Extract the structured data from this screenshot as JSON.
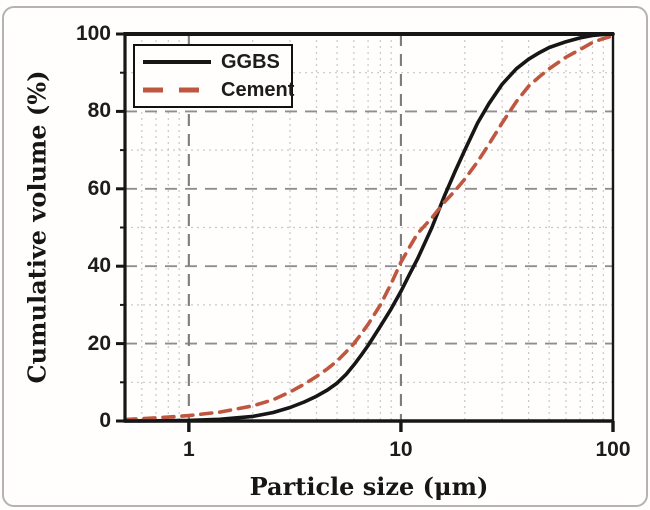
{
  "figure": {
    "background": "#fffefd",
    "outer_border_color": "#b6b3ae"
  },
  "chart_data": {
    "type": "line",
    "title": "",
    "xlabel": "Particle size (μm)",
    "ylabel": "Cumulative volume (%)",
    "x_scale": "log",
    "xlim": [
      0.5,
      100
    ],
    "ylim": [
      0,
      100
    ],
    "x_major_ticks": [
      1,
      10,
      100
    ],
    "x_major_tick_labels": [
      "1",
      "10",
      "100"
    ],
    "y_major_ticks": [
      0,
      20,
      40,
      60,
      80,
      100
    ],
    "y_minor_ticks": [
      10,
      30,
      50,
      70,
      90
    ],
    "grid": "major dashed gray, minor dotted light-gray, log minor verticals",
    "legend_position": "top-left",
    "colors": {
      "axis": "#161616",
      "major_grid": "#8e8e8e",
      "vertical_major_grid": "#7c7c7c",
      "minor_grid": "#c8c8c8",
      "ggbs": "#161616",
      "cement": "#bf5740"
    },
    "series": [
      {
        "name": "GGBS",
        "style": "solid",
        "color": "#161616",
        "points": [
          [
            0.5,
            0
          ],
          [
            0.7,
            0.05
          ],
          [
            1,
            0.15
          ],
          [
            1.4,
            0.45
          ],
          [
            2,
            1.2
          ],
          [
            2.5,
            2.2
          ],
          [
            3,
            3.5
          ],
          [
            3.5,
            4.9
          ],
          [
            4,
            6.4
          ],
          [
            4.5,
            8
          ],
          [
            5,
            9.8
          ],
          [
            5.5,
            12
          ],
          [
            6,
            14.5
          ],
          [
            6.5,
            17
          ],
          [
            7,
            19.5
          ],
          [
            8,
            24.5
          ],
          [
            9,
            29
          ],
          [
            10,
            33.5
          ],
          [
            11,
            38
          ],
          [
            12,
            42
          ],
          [
            14,
            50
          ],
          [
            16,
            58
          ],
          [
            18,
            64.5
          ],
          [
            20,
            70
          ],
          [
            23,
            77
          ],
          [
            26,
            82
          ],
          [
            30,
            87
          ],
          [
            35,
            91
          ],
          [
            40,
            93.5
          ],
          [
            45,
            95.2
          ],
          [
            50,
            96.5
          ],
          [
            60,
            98
          ],
          [
            70,
            99
          ],
          [
            80,
            99.6
          ],
          [
            90,
            99.9
          ],
          [
            100,
            100
          ]
        ]
      },
      {
        "name": "Cement",
        "style": "dashed",
        "color": "#bf5740",
        "points": [
          [
            0.5,
            0.4
          ],
          [
            0.7,
            0.8
          ],
          [
            1,
            1.4
          ],
          [
            1.4,
            2.3
          ],
          [
            2,
            3.9
          ],
          [
            2.5,
            5.5
          ],
          [
            3,
            7.5
          ],
          [
            3.5,
            9.5
          ],
          [
            4,
            11.5
          ],
          [
            4.5,
            13.5
          ],
          [
            5,
            15.5
          ],
          [
            5.5,
            17.8
          ],
          [
            6,
            20
          ],
          [
            6.5,
            22.5
          ],
          [
            7,
            25
          ],
          [
            8,
            30
          ],
          [
            9,
            35.5
          ],
          [
            10,
            41
          ],
          [
            11,
            45
          ],
          [
            12,
            48.5
          ],
          [
            14,
            52.5
          ],
          [
            16,
            56.5
          ],
          [
            18,
            59.5
          ],
          [
            20,
            62.5
          ],
          [
            23,
            67
          ],
          [
            26,
            71.5
          ],
          [
            30,
            77
          ],
          [
            35,
            82.5
          ],
          [
            40,
            86.5
          ],
          [
            45,
            89
          ],
          [
            50,
            91
          ],
          [
            60,
            94
          ],
          [
            70,
            96
          ],
          [
            80,
            97.8
          ],
          [
            90,
            98.8
          ],
          [
            100,
            99.5
          ]
        ]
      }
    ]
  },
  "legend": {
    "items": [
      {
        "label": "GGBS"
      },
      {
        "label": "Cement"
      }
    ]
  }
}
